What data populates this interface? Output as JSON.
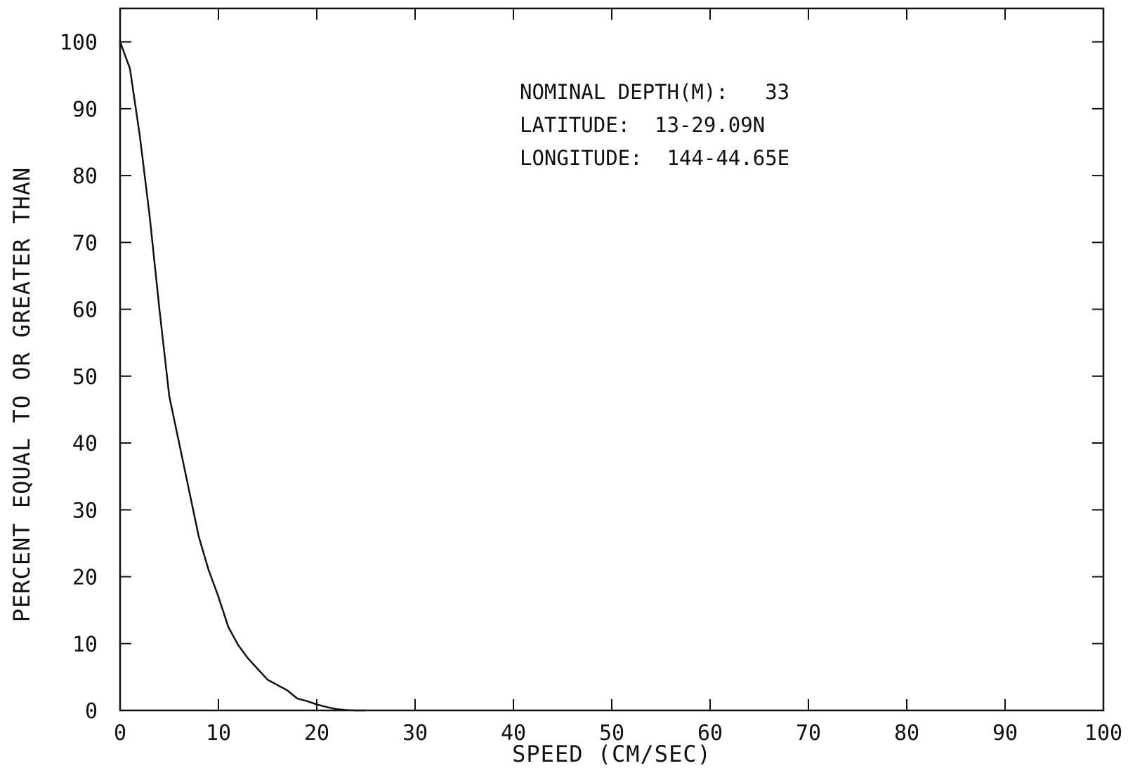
{
  "chart_data": {
    "type": "line",
    "title": "",
    "xlabel": "SPEED (CM/SEC)",
    "ylabel": "PERCENT EQUAL TO OR GREATER THAN",
    "xlim": [
      0,
      100
    ],
    "ylim": [
      0,
      105
    ],
    "xticks": [
      0,
      10,
      20,
      30,
      40,
      50,
      60,
      70,
      80,
      90,
      100
    ],
    "yticks": [
      0,
      10,
      20,
      30,
      40,
      50,
      60,
      70,
      80,
      90,
      100
    ],
    "xtick_labels": [
      "0",
      "10",
      "20",
      "30",
      "40",
      "50",
      "60",
      "70",
      "80",
      "90",
      "100"
    ],
    "ytick_labels": [
      "0",
      "10",
      "20",
      "30",
      "40",
      "50",
      "60",
      "70",
      "80",
      "90",
      "100"
    ],
    "grid": false,
    "annotations": [
      "NOMINAL DEPTH(M):   33",
      "LATITUDE:  13-29.09N",
      "LONGITUDE:  144-44.65E"
    ],
    "series": [
      {
        "x": [
          0,
          1,
          2,
          3,
          4,
          5,
          6,
          7,
          8,
          9,
          10,
          11,
          12,
          13,
          14,
          15,
          16,
          17,
          18,
          19,
          20,
          21,
          22,
          23,
          24,
          25
        ],
        "y": [
          100,
          96,
          86,
          74,
          60,
          47,
          40,
          33,
          26,
          21,
          17,
          12.5,
          9.8,
          7.8,
          6.2,
          4.6,
          3.8,
          3.0,
          1.8,
          1.4,
          0.9,
          0.5,
          0.2,
          0.05,
          0,
          0
        ]
      }
    ]
  }
}
